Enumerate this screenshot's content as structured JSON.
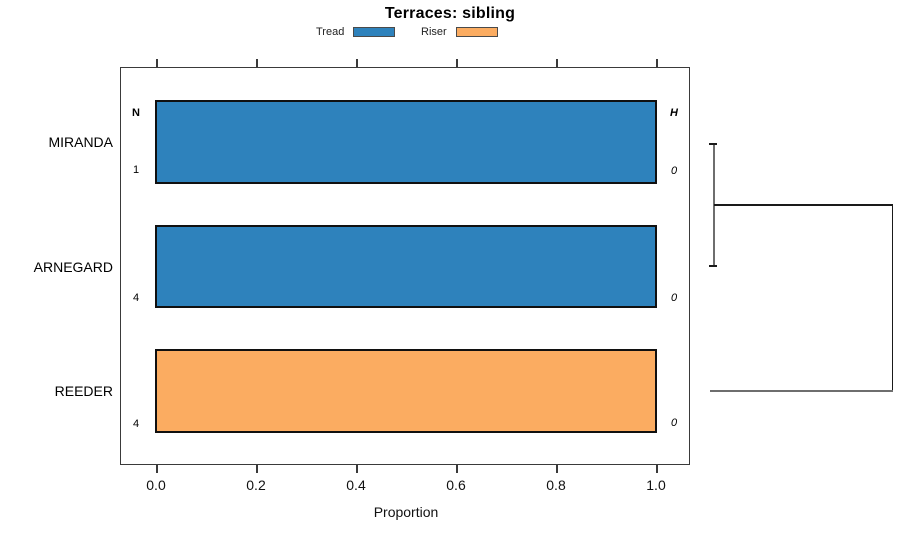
{
  "title": "Terraces: sibling",
  "legend": {
    "items": [
      {
        "label": "Tread",
        "color": "#2E82BC"
      },
      {
        "label": "Riser",
        "color": "#FBAC61"
      }
    ]
  },
  "axis": {
    "ticks": [
      "0.0",
      "0.2",
      "0.4",
      "0.6",
      "0.8",
      "1.0"
    ],
    "label": "Proportion"
  },
  "columns": {
    "left": "N",
    "right": "H"
  },
  "rows": [
    {
      "label": "MIRANDA",
      "n": "1",
      "h": "0",
      "series": "Tread",
      "value": 1.0
    },
    {
      "label": "ARNEGARD",
      "n": "4",
      "h": "0",
      "series": "Tread",
      "value": 1.0
    },
    {
      "label": "REEDER",
      "n": "4",
      "h": "0",
      "series": "Riser",
      "value": 1.0
    }
  ],
  "chart_data": {
    "type": "bar",
    "orientation": "horizontal",
    "title": "Terraces: sibling",
    "categories": [
      "MIRANDA",
      "ARNEGARD",
      "REEDER"
    ],
    "series": [
      {
        "name": "Tread",
        "color": "#2E82BC",
        "values": [
          1.0,
          1.0,
          0.0
        ]
      },
      {
        "name": "Riser",
        "color": "#FBAC61",
        "values": [
          0.0,
          0.0,
          1.0
        ]
      }
    ],
    "annotations": {
      "N": [
        1,
        4,
        4
      ],
      "H": [
        0,
        0,
        0
      ]
    },
    "xlabel": "Proportion",
    "xlim": [
      0,
      1
    ],
    "xticks": [
      0.0,
      0.2,
      0.4,
      0.6,
      0.8,
      1.0
    ],
    "grid": false,
    "legend_position": "top-center",
    "dendrogram": {
      "joins": [
        {
          "members": [
            "MIRANDA",
            "ARNEGARD"
          ],
          "style": "bracket"
        },
        {
          "members": [
            [
              "MIRANDA",
              "ARNEGARD"
            ],
            "REEDER"
          ],
          "style": "elbow-right"
        }
      ]
    }
  }
}
